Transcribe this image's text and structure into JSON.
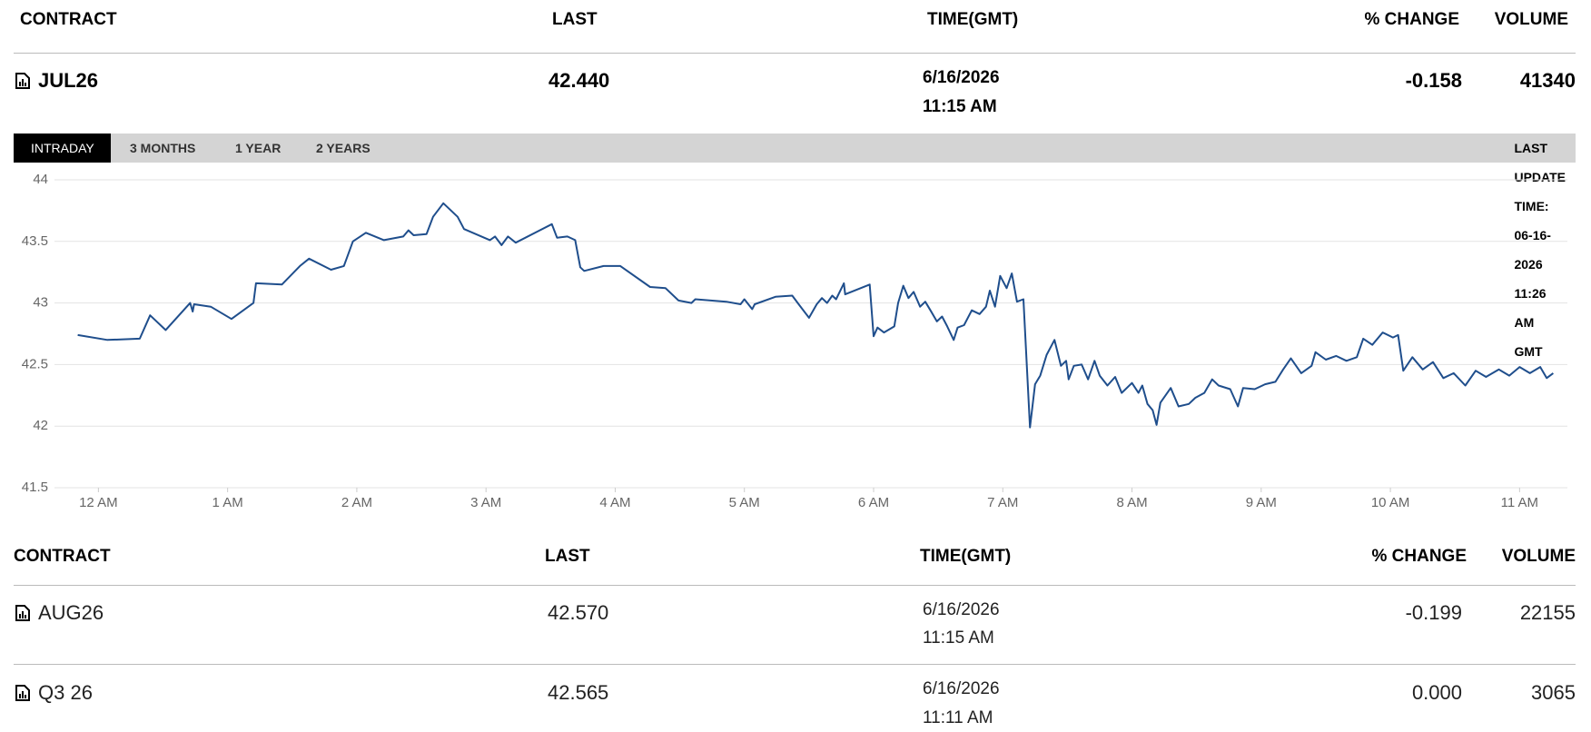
{
  "header": {
    "columns": [
      "CONTRACT",
      "LAST",
      "TIME(GMT)",
      "% CHANGE",
      "VOLUME"
    ]
  },
  "main": {
    "contract": "JUL26",
    "last": "42.440",
    "date": "6/16/2026",
    "time": "11:15 AM",
    "change": "-0.158",
    "volume": "41340"
  },
  "tabs": [
    "INTRADAY",
    "3 MONTHS",
    "1 YEAR",
    "2 YEARS"
  ],
  "last_update": "LAST UPDATE TIME: 06-16-2026 11:26 AM GMT",
  "chart_data": {
    "type": "line",
    "x": [
      -0.16,
      0.07,
      0.32,
      0.4,
      0.52,
      0.71,
      0.73,
      0.74,
      0.87,
      1.03,
      1.2,
      1.22,
      1.42,
      1.56,
      1.63,
      1.8,
      1.9,
      1.97,
      2.07,
      2.21,
      2.36,
      2.4,
      2.44,
      2.54,
      2.59,
      2.67,
      2.78,
      2.83,
      3.03,
      3.07,
      3.12,
      3.17,
      3.23,
      3.51,
      3.55,
      3.63,
      3.69,
      3.73,
      3.76,
      3.91,
      4.04,
      4.27,
      4.39,
      4.49,
      4.59,
      4.62,
      4.86,
      4.97,
      5.0,
      5.06,
      5.08,
      5.24,
      5.37,
      5.42,
      5.5,
      5.56,
      5.6,
      5.64,
      5.68,
      5.71,
      5.77,
      5.78,
      5.97,
      6.0,
      6.03,
      6.08,
      6.16,
      6.19,
      6.23,
      6.27,
      6.31,
      6.36,
      6.4,
      6.44,
      6.49,
      6.53,
      6.57,
      6.62,
      6.65,
      6.7,
      6.76,
      6.82,
      6.87,
      6.9,
      6.94,
      6.98,
      7.03,
      7.07,
      7.11,
      7.16,
      7.21,
      7.25,
      7.29,
      7.34,
      7.4,
      7.45,
      7.49,
      7.51,
      7.55,
      7.61,
      7.66,
      7.71,
      7.75,
      7.81,
      7.87,
      7.92,
      8.0,
      8.05,
      8.08,
      8.12,
      8.16,
      8.19,
      8.22,
      8.3,
      8.36,
      8.44,
      8.49,
      8.56,
      8.62,
      8.67,
      8.76,
      8.82,
      8.86,
      8.95,
      9.03,
      9.11,
      9.17,
      9.23,
      9.31,
      9.39,
      9.42,
      9.5,
      9.58,
      9.66,
      9.74,
      9.79,
      9.86,
      9.94,
      10.02,
      10.06,
      10.1,
      10.17,
      10.25,
      10.33,
      10.41,
      10.49,
      10.58,
      10.66,
      10.74,
      10.84,
      10.92,
      11.0,
      11.08,
      11.16,
      11.21,
      11.26
    ],
    "series": [
      {
        "color": "#1f4e8c",
        "values": [
          42.74,
          42.7,
          42.71,
          42.9,
          42.78,
          43.0,
          42.93,
          42.99,
          42.97,
          42.87,
          43.0,
          43.16,
          43.15,
          43.3,
          43.36,
          43.27,
          43.3,
          43.5,
          43.57,
          43.51,
          43.54,
          43.59,
          43.55,
          43.56,
          43.7,
          43.81,
          43.7,
          43.6,
          43.51,
          43.54,
          43.47,
          43.54,
          43.49,
          43.64,
          43.53,
          43.54,
          43.51,
          43.29,
          43.26,
          43.3,
          43.3,
          43.13,
          43.12,
          43.02,
          43.0,
          43.03,
          43.01,
          42.99,
          43.03,
          42.95,
          42.99,
          43.05,
          43.06,
          42.99,
          42.88,
          42.99,
          43.04,
          43.0,
          43.06,
          43.03,
          43.16,
          43.07,
          43.15,
          42.73,
          42.8,
          42.76,
          42.81,
          43.0,
          43.14,
          43.04,
          43.09,
          42.97,
          43.01,
          42.94,
          42.85,
          42.89,
          42.81,
          42.7,
          42.8,
          42.82,
          42.94,
          42.91,
          42.97,
          43.1,
          42.97,
          43.22,
          43.12,
          43.24,
          43.01,
          43.03,
          41.99,
          42.34,
          42.41,
          42.58,
          42.7,
          42.49,
          42.53,
          42.38,
          42.49,
          42.5,
          42.38,
          42.53,
          42.41,
          42.33,
          42.4,
          42.27,
          42.35,
          42.27,
          42.33,
          42.18,
          42.13,
          42.01,
          42.19,
          42.31,
          42.16,
          42.18,
          42.23,
          42.27,
          42.38,
          42.33,
          42.3,
          42.16,
          42.31,
          42.3,
          42.34,
          42.36,
          42.46,
          42.55,
          42.43,
          42.49,
          42.6,
          42.54,
          42.57,
          42.53,
          42.56,
          42.71,
          42.66,
          42.76,
          42.72,
          42.74,
          42.45,
          42.56,
          42.46,
          42.52,
          42.39,
          42.43,
          42.33,
          42.45,
          42.4,
          42.46,
          42.41,
          42.48,
          42.43,
          42.48,
          42.39,
          42.43
        ]
      }
    ],
    "xlim": [
      -0.34,
      11.37
    ],
    "xticks": [
      {
        "value": 0,
        "label": "12 AM"
      },
      {
        "value": 1,
        "label": "1 AM"
      },
      {
        "value": 2,
        "label": "2 AM"
      },
      {
        "value": 3,
        "label": "3 AM"
      },
      {
        "value": 4,
        "label": "4 AM"
      },
      {
        "value": 5,
        "label": "5 AM"
      },
      {
        "value": 6,
        "label": "6 AM"
      },
      {
        "value": 7,
        "label": "7 AM"
      },
      {
        "value": 8,
        "label": "8 AM"
      },
      {
        "value": 9,
        "label": "9 AM"
      },
      {
        "value": 10,
        "label": "10 AM"
      },
      {
        "value": 11,
        "label": "11 AM"
      }
    ],
    "ylim": [
      41.5,
      44
    ],
    "yticks": [
      41.5,
      42,
      42.5,
      43,
      43.5,
      44
    ],
    "grid": true
  },
  "table": {
    "columns": [
      "CONTRACT",
      "LAST",
      "TIME(GMT)",
      "% CHANGE",
      "VOLUME"
    ],
    "rows": [
      [
        "AUG26",
        "42.570",
        "6/16/2026",
        "11:15 AM",
        "-0.199",
        "22155"
      ],
      [
        "Q3 26",
        "42.565",
        "6/16/2026",
        "11:11 AM",
        "0.000",
        "3065"
      ]
    ]
  }
}
